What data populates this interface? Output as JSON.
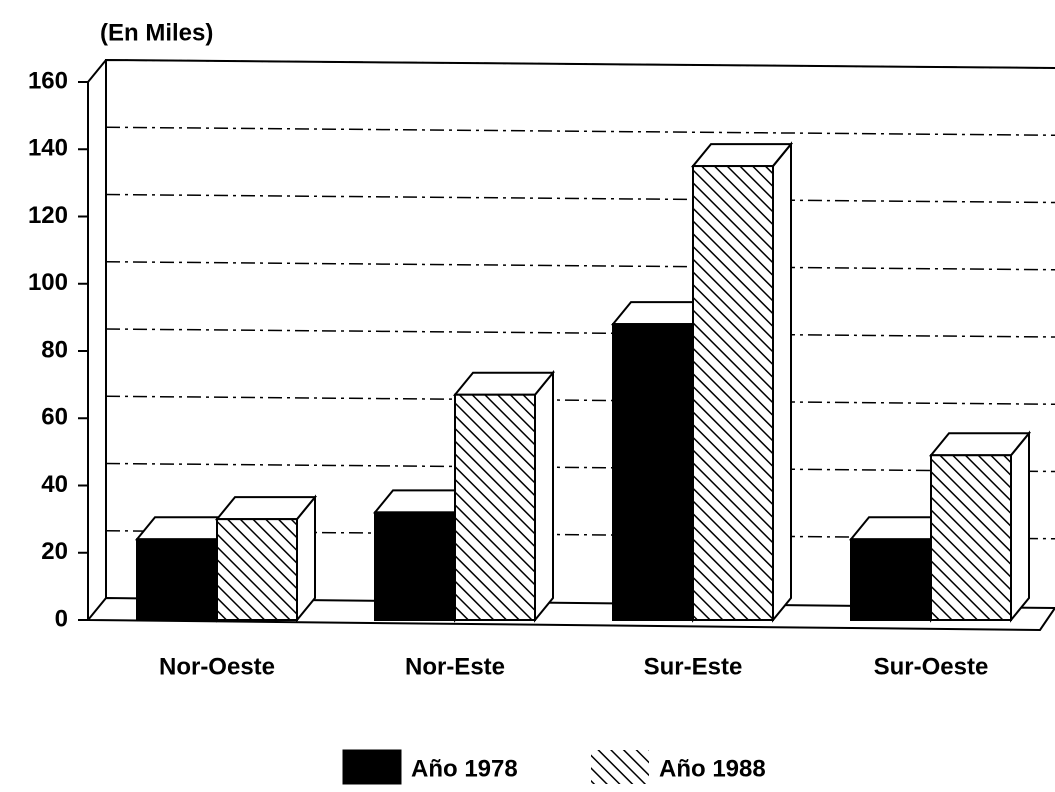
{
  "chart_data": {
    "type": "bar3d",
    "y_label": "(En Miles)",
    "categories": [
      "Nor-Oeste",
      "Nor-Este",
      "Sur-Este",
      "Sur-Oeste"
    ],
    "series": [
      {
        "name": "Año 1978",
        "color": "#000000",
        "values": [
          24,
          32,
          88,
          24
        ]
      },
      {
        "name": "Año 1988",
        "color": "#ffffff",
        "hatch": true,
        "values": [
          30,
          67,
          135,
          49
        ]
      }
    ],
    "ylim": [
      0,
      160
    ],
    "yticks": [
      0,
      20,
      40,
      60,
      80,
      100,
      120,
      140,
      160
    ],
    "grid": true,
    "legend": "bottom"
  }
}
